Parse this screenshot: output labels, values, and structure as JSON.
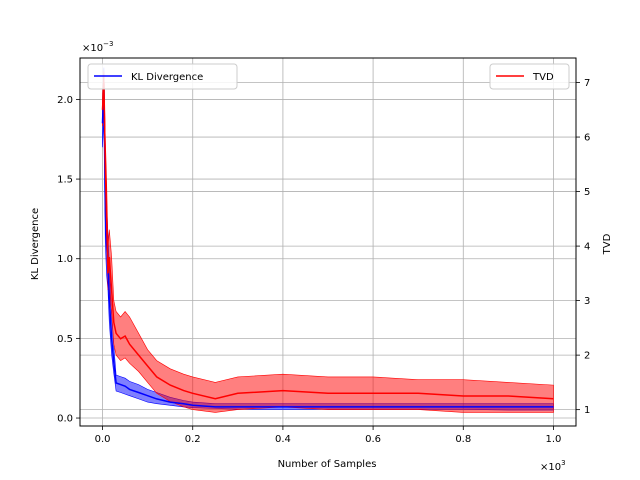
{
  "chart_data": {
    "type": "line",
    "xlabel": "Number of Samples",
    "x_multiplier_label": "×10",
    "x_multiplier_exp": "3",
    "xlim": [
      -0.05,
      1.05
    ],
    "xticks": [
      0.0,
      0.2,
      0.4,
      0.6,
      0.8,
      1.0
    ],
    "xtick_labels": [
      "0.0",
      "0.2",
      "0.4",
      "0.6",
      "0.8",
      "1.0"
    ],
    "grid": true,
    "left_axis": {
      "label": "KL Divergence",
      "multiplier_label": "×10",
      "multiplier_exp": "−3",
      "ylim": [
        -0.05,
        2.26
      ],
      "ticks": [
        0.0,
        0.5,
        1.0,
        1.5,
        2.0
      ],
      "tick_labels": [
        "0.0",
        "0.5",
        "1.0",
        "1.5",
        "2.0"
      ]
    },
    "right_axis": {
      "label": "TVD",
      "ylim": [
        0.7,
        7.45
      ],
      "ticks": [
        1,
        2,
        3,
        4,
        5,
        6,
        7
      ],
      "tick_labels": [
        "1",
        "2",
        "3",
        "4",
        "5",
        "6",
        "7"
      ]
    },
    "series": [
      {
        "name": "KL Divergence",
        "axis": "left",
        "color": "#0000ff",
        "legend_position": "upper-left",
        "x": [
          0.0,
          0.003,
          0.006,
          0.009,
          0.012,
          0.015,
          0.02,
          0.025,
          0.03,
          0.04,
          0.05,
          0.06,
          0.08,
          0.1,
          0.12,
          0.15,
          0.18,
          0.2,
          0.25,
          0.3,
          0.4,
          0.5,
          0.6,
          0.7,
          0.8,
          0.9,
          1.0
        ],
        "y": [
          1.85,
          2.1,
          1.3,
          1.1,
          0.95,
          0.75,
          0.5,
          0.35,
          0.22,
          0.21,
          0.2,
          0.18,
          0.16,
          0.14,
          0.12,
          0.1,
          0.09,
          0.08,
          0.07,
          0.07,
          0.07,
          0.07,
          0.07,
          0.07,
          0.07,
          0.07,
          0.07
        ],
        "lower": [
          1.7,
          1.9,
          1.1,
          0.9,
          0.8,
          0.6,
          0.4,
          0.28,
          0.17,
          0.16,
          0.15,
          0.14,
          0.12,
          0.1,
          0.09,
          0.08,
          0.07,
          0.065,
          0.06,
          0.055,
          0.055,
          0.055,
          0.055,
          0.055,
          0.055,
          0.05,
          0.05
        ],
        "upper": [
          2.0,
          2.2,
          1.5,
          1.35,
          1.15,
          0.95,
          0.65,
          0.45,
          0.27,
          0.26,
          0.25,
          0.23,
          0.21,
          0.18,
          0.16,
          0.13,
          0.11,
          0.1,
          0.09,
          0.09,
          0.09,
          0.09,
          0.09,
          0.09,
          0.09,
          0.09,
          0.09
        ]
      },
      {
        "name": "TVD",
        "axis": "right",
        "color": "#ff0000",
        "legend_position": "upper-right",
        "x": [
          0.0,
          0.003,
          0.006,
          0.009,
          0.012,
          0.015,
          0.02,
          0.025,
          0.03,
          0.04,
          0.05,
          0.06,
          0.08,
          0.1,
          0.12,
          0.15,
          0.18,
          0.2,
          0.25,
          0.3,
          0.4,
          0.5,
          0.6,
          0.7,
          0.8,
          0.9,
          1.0
        ],
        "y": [
          6.5,
          7.0,
          5.5,
          4.5,
          3.5,
          3.8,
          3.2,
          2.6,
          2.4,
          2.3,
          2.35,
          2.2,
          2.0,
          1.8,
          1.6,
          1.45,
          1.35,
          1.3,
          1.2,
          1.3,
          1.35,
          1.3,
          1.3,
          1.3,
          1.25,
          1.25,
          1.2
        ],
        "lower": [
          6.2,
          6.6,
          5.0,
          4.0,
          3.2,
          3.2,
          2.8,
          2.2,
          2.0,
          1.9,
          1.95,
          1.85,
          1.7,
          1.5,
          1.3,
          1.15,
          1.05,
          1.0,
          0.95,
          1.0,
          1.05,
          1.0,
          1.0,
          1.0,
          0.95,
          0.95,
          0.95
        ],
        "upper": [
          6.8,
          7.2,
          6.0,
          5.2,
          4.0,
          4.3,
          3.8,
          3.0,
          2.8,
          2.7,
          2.8,
          2.7,
          2.4,
          2.1,
          1.9,
          1.75,
          1.65,
          1.6,
          1.5,
          1.6,
          1.65,
          1.6,
          1.6,
          1.55,
          1.55,
          1.5,
          1.45
        ]
      }
    ]
  }
}
